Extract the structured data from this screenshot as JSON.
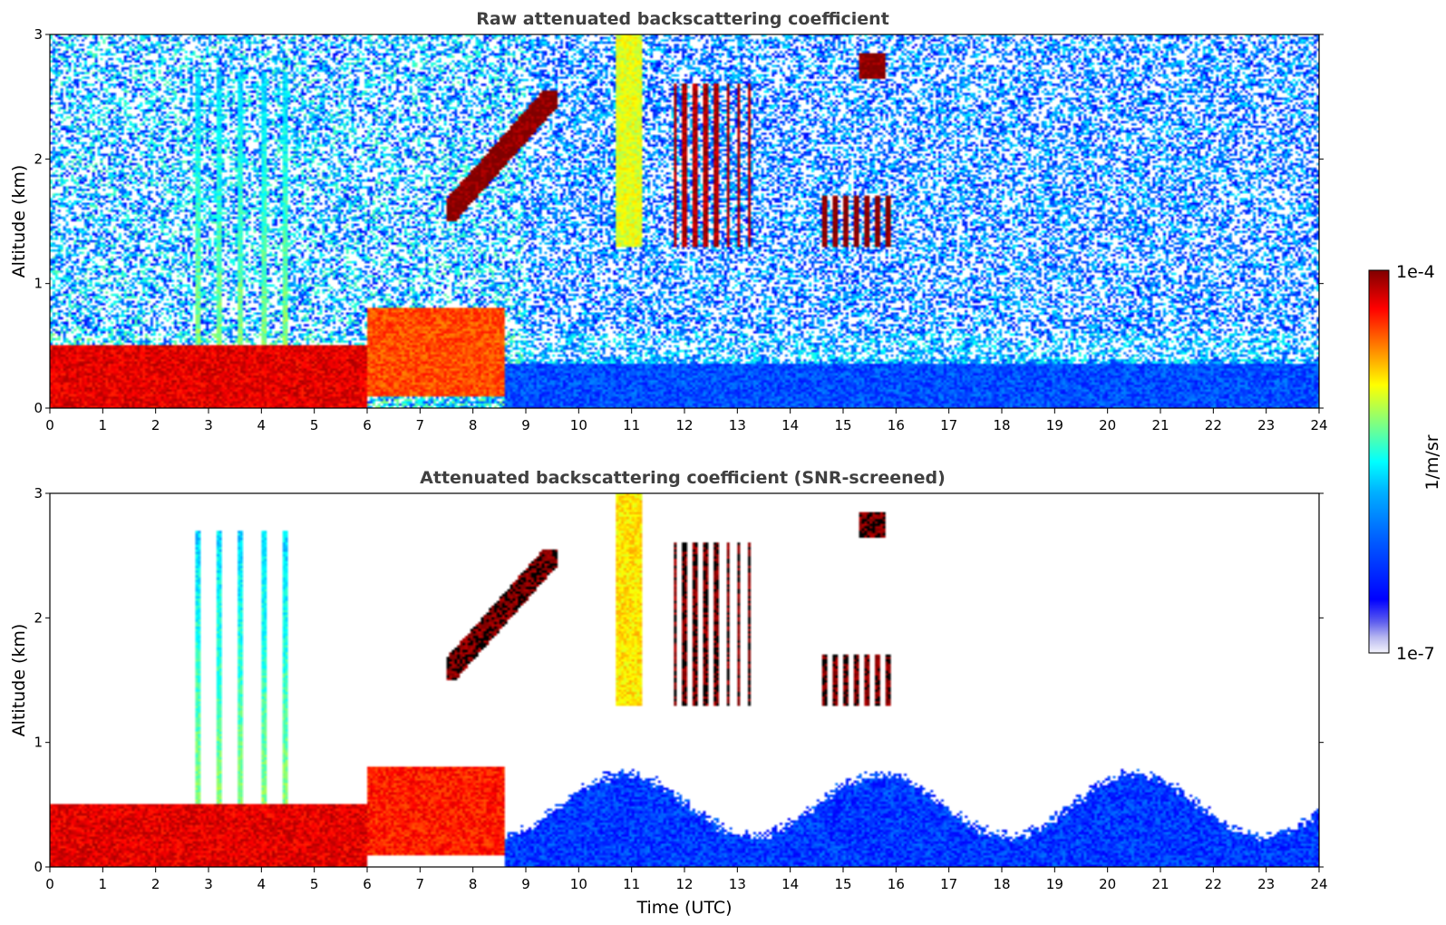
{
  "chart_data": [
    {
      "type": "heatmap",
      "title": "Raw attenuated backscattering coefficient",
      "xlabel": "",
      "ylabel": "Altitude (km)",
      "xlim": [
        0,
        24
      ],
      "ylim": [
        0,
        3
      ],
      "xticks": [
        "0",
        "1",
        "2",
        "3",
        "4",
        "5",
        "6",
        "7",
        "8",
        "9",
        "10",
        "11",
        "12",
        "13",
        "14",
        "15",
        "16",
        "17",
        "18",
        "19",
        "20",
        "21",
        "22",
        "23",
        "24"
      ],
      "yticks": [
        "0",
        "1",
        "2",
        "3"
      ],
      "grid": false,
      "colormap": "jet",
      "noise": "dense",
      "features": [
        {
          "name": "boundary layer",
          "t": [
            0,
            6
          ],
          "z": [
            0,
            0.5
          ],
          "level": 0.9
        },
        {
          "name": "residual layer",
          "t": [
            6,
            8.6
          ],
          "z": [
            0.1,
            0.8
          ],
          "level": 0.8
        },
        {
          "name": "rising aerosol layer",
          "t": [
            7.5,
            9.6
          ],
          "z": [
            1.5,
            2.55
          ],
          "level": 1.0
        },
        {
          "name": "plumes",
          "t": [
            2.6,
            4.8
          ],
          "z": [
            0,
            2.7
          ],
          "level": 0.55
        },
        {
          "name": "column at 11 UTC",
          "t": [
            10.7,
            11.2
          ],
          "z": [
            1.3,
            3.0
          ],
          "level": 0.6
        },
        {
          "name": "clouds 12-13",
          "t": [
            11.8,
            13.3
          ],
          "z": [
            1.3,
            2.6
          ],
          "level": 0.95
        },
        {
          "name": "clouds 14.5-16",
          "t": [
            14.5,
            16
          ],
          "z": [
            1.3,
            1.7
          ],
          "level": 1.0
        },
        {
          "name": "cloud 15.5",
          "t": [
            15.3,
            15.8
          ],
          "z": [
            2.65,
            2.85
          ],
          "level": 1.0
        },
        {
          "name": "clear air layer",
          "t": [
            8.6,
            24
          ],
          "z": [
            0,
            0.35
          ],
          "level": 0.2
        }
      ]
    },
    {
      "type": "heatmap",
      "title": "Attenuated backscattering coefficient (SNR-screened)",
      "xlabel": "Time (UTC)",
      "ylabel": "Altitude (km)",
      "xlim": [
        0,
        24
      ],
      "ylim": [
        0,
        3
      ],
      "xticks": [
        "0",
        "1",
        "2",
        "3",
        "4",
        "5",
        "6",
        "7",
        "8",
        "9",
        "10",
        "11",
        "12",
        "13",
        "14",
        "15",
        "16",
        "17",
        "18",
        "19",
        "20",
        "21",
        "22",
        "23",
        "24"
      ],
      "yticks": [
        "0",
        "1",
        "2",
        "3"
      ],
      "grid": false,
      "colormap": "jet",
      "noise": "none",
      "features": [
        {
          "name": "boundary layer",
          "t": [
            0,
            6
          ],
          "z": [
            0,
            0.5
          ],
          "level": 0.9
        },
        {
          "name": "residual layer",
          "t": [
            6,
            8.6
          ],
          "z": [
            0.1,
            0.8
          ],
          "level": 0.85
        },
        {
          "name": "rising aerosol layer",
          "t": [
            7.5,
            9.6
          ],
          "z": [
            1.5,
            2.55
          ],
          "level": 1.0
        },
        {
          "name": "plumes",
          "t": [
            2.6,
            4.8
          ],
          "z": [
            0,
            2.7
          ],
          "level": 0.55
        },
        {
          "name": "column at 11 UTC",
          "t": [
            10.7,
            11.2
          ],
          "z": [
            1.3,
            3.0
          ],
          "level": 0.65
        },
        {
          "name": "clouds 12-13",
          "t": [
            11.8,
            13.3
          ],
          "z": [
            1.3,
            2.6
          ],
          "level": 1.0
        },
        {
          "name": "clouds 14.5-16",
          "t": [
            14.5,
            16
          ],
          "z": [
            1.3,
            1.7
          ],
          "level": 1.0
        },
        {
          "name": "cloud 15.5",
          "t": [
            15.3,
            15.8
          ],
          "z": [
            2.65,
            2.85
          ],
          "level": 1.0
        },
        {
          "name": "clear air layer",
          "t": [
            8.6,
            24
          ],
          "z": [
            0,
            0.8
          ],
          "level": 0.18
        }
      ]
    }
  ],
  "colorbar": {
    "max_label": "1e-4",
    "min_label": "1e-7",
    "unit_label": "1/m/sr",
    "colors": [
      "#ffffff",
      "#d8d8f5",
      "#a8a8f0",
      "#6b6bee",
      "#0000ff",
      "#0040ff",
      "#0080ff",
      "#00c0ff",
      "#00ffff",
      "#40ff c0",
      "#80ff80",
      "#c0ff40",
      "#ffff00",
      "#ffc000",
      "#ff8000",
      "#ff4000",
      "#ff0000",
      "#c00000",
      "#800000"
    ]
  }
}
